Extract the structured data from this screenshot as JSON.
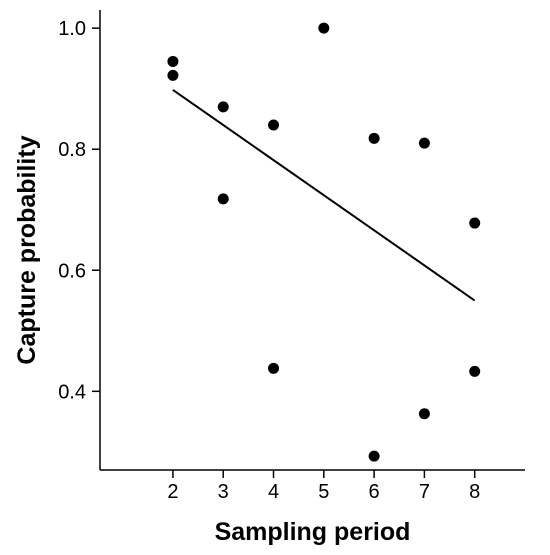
{
  "chart_data": {
    "type": "scatter",
    "title": "",
    "xlabel": "Sampling period",
    "ylabel": "Capture probability",
    "xlim": [
      0.55,
      9.0
    ],
    "ylim": [
      0.27,
      1.03
    ],
    "x_ticks": [
      2,
      3,
      4,
      5,
      6,
      7,
      8
    ],
    "y_ticks": [
      0.4,
      0.6,
      0.8,
      1.0
    ],
    "y_tick_labels": [
      "0.4",
      "0.6",
      "0.8",
      "1.0"
    ],
    "grid": false,
    "legend": "none",
    "points": [
      {
        "x": 2,
        "y": 0.945
      },
      {
        "x": 2,
        "y": 0.922
      },
      {
        "x": 3,
        "y": 0.87
      },
      {
        "x": 3,
        "y": 0.718
      },
      {
        "x": 4,
        "y": 0.84
      },
      {
        "x": 4,
        "y": 0.438
      },
      {
        "x": 5,
        "y": 1.0
      },
      {
        "x": 6,
        "y": 0.818
      },
      {
        "x": 6,
        "y": 0.293
      },
      {
        "x": 7,
        "y": 0.81
      },
      {
        "x": 7,
        "y": 0.363
      },
      {
        "x": 8,
        "y": 0.678
      },
      {
        "x": 8,
        "y": 0.433
      }
    ],
    "trend_line": {
      "x": [
        2,
        8
      ],
      "y": [
        0.898,
        0.55
      ]
    },
    "colors": {
      "points": "#000000",
      "line": "#000000",
      "axis": "#000000"
    }
  }
}
